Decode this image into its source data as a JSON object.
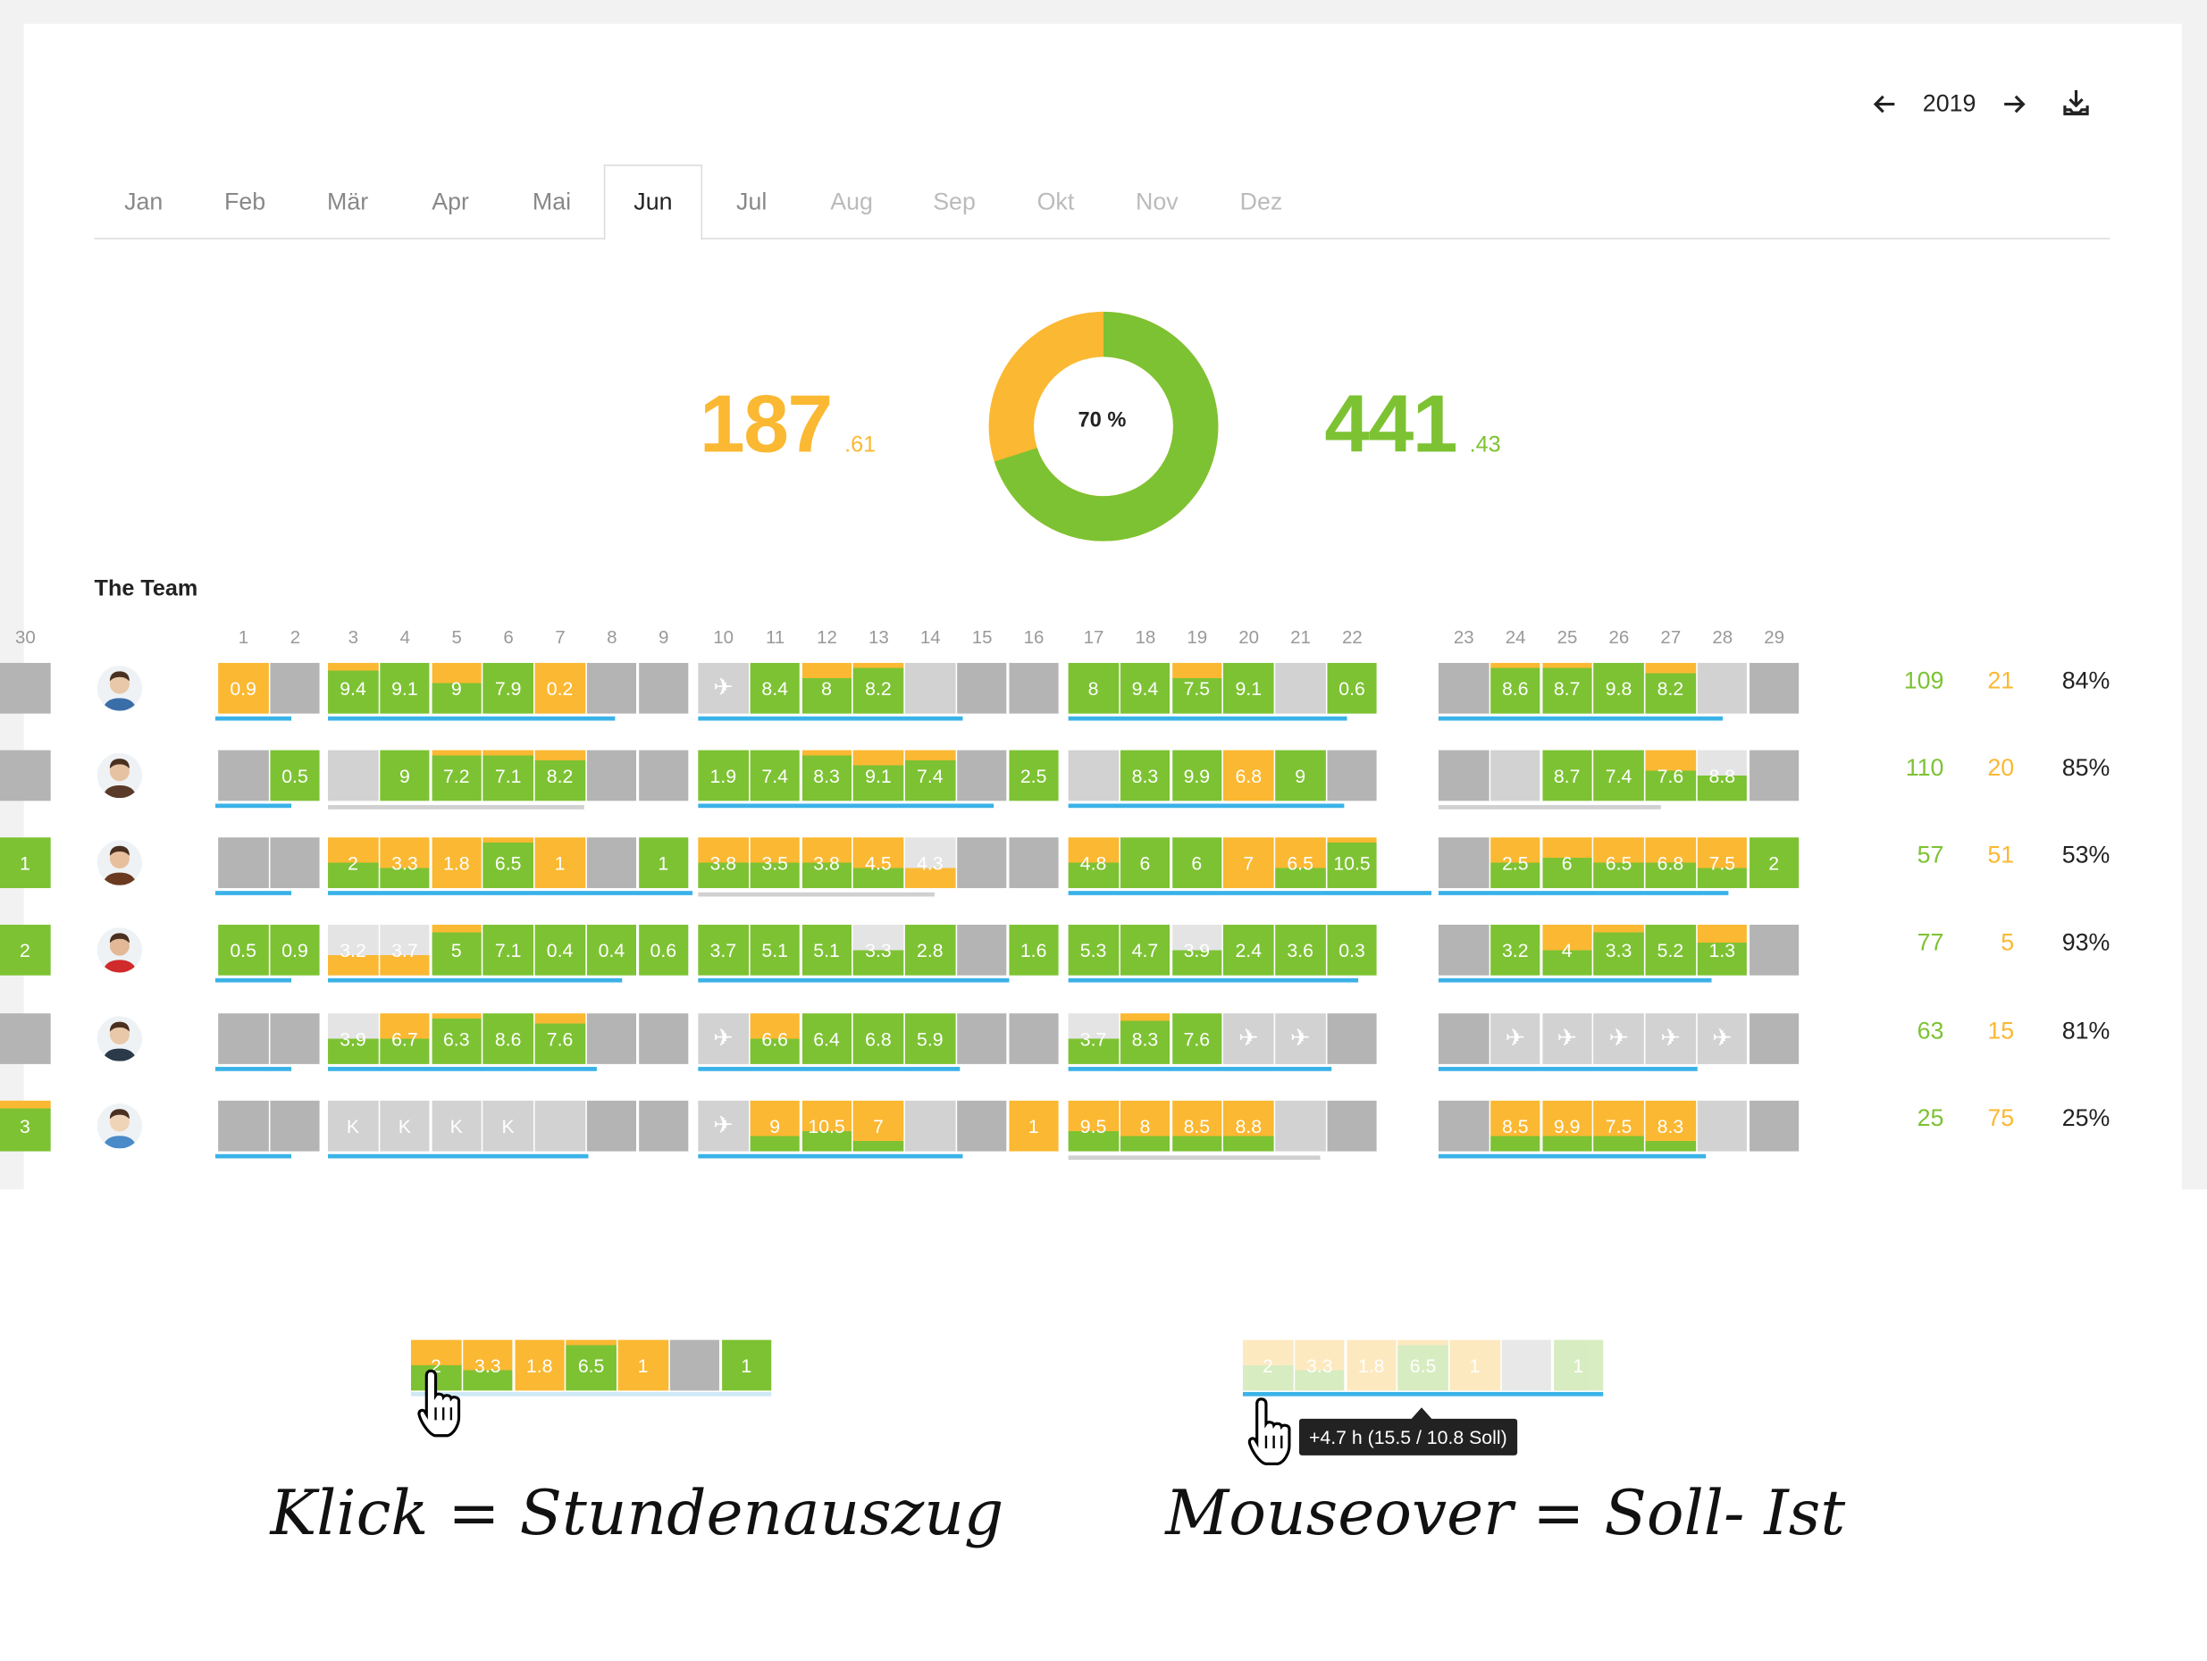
{
  "header": {
    "year": "2019"
  },
  "months": [
    "Jan",
    "Feb",
    "Mär",
    "Apr",
    "Mai",
    "Jun",
    "Jul",
    "Aug",
    "Sep",
    "Okt",
    "Nov",
    "Dez"
  ],
  "active_month": "Jun",
  "summary": {
    "left_int": "187",
    "left_dec": ".61",
    "right_int": "441",
    "right_dec": ".43",
    "donut_label": "70 %",
    "donut_percent": 70
  },
  "colors": {
    "green": "#7dc233",
    "orange": "#fbb832",
    "gray": "#b4b4b4",
    "lightgray": "#d2d2d2",
    "blue": "#3ab2e8"
  },
  "team": {
    "title": "The Team",
    "days": [
      "1",
      "2",
      "3",
      "4",
      "5",
      "6",
      "7",
      "8",
      "9",
      "10",
      "11",
      "12",
      "13",
      "14",
      "15",
      "16",
      "17",
      "18",
      "19",
      "20",
      "21",
      "22",
      "23",
      "24",
      "25",
      "26",
      "27",
      "28",
      "29",
      "30"
    ],
    "members": [
      {
        "hours": "109",
        "overtime": "21",
        "percent": "84%",
        "cells": [
          {
            "label": "0.9",
            "k": "o"
          },
          {
            "label": "",
            "k": "g"
          },
          {
            "label": "9.4",
            "k": "go",
            "f": 0.15
          },
          {
            "label": "9.1",
            "k": "g"
          },
          {
            "label": "9",
            "k": "go",
            "f": 0.4
          },
          {
            "label": "7.9",
            "k": "g"
          },
          {
            "label": "0.2",
            "k": "o"
          },
          {
            "label": "",
            "k": "g"
          },
          {
            "label": "",
            "k": "g"
          },
          {
            "label": "✈",
            "k": "plane"
          },
          {
            "label": "8.4",
            "k": "g"
          },
          {
            "label": "8",
            "k": "go",
            "f": 0.3
          },
          {
            "label": "8.2",
            "k": "go",
            "f": 0.1
          },
          {
            "label": "",
            "k": "l"
          },
          {
            "label": "",
            "k": "g"
          },
          {
            "label": "",
            "k": "g"
          },
          {
            "label": "8",
            "k": "g"
          },
          {
            "label": "9.4",
            "k": "g"
          },
          {
            "label": "7.5",
            "k": "og",
            "f": 0.3
          },
          {
            "label": "9.1",
            "k": "g"
          },
          {
            "label": "",
            "k": "l"
          },
          {
            "label": "0.6",
            "k": "g"
          },
          {
            "label": "",
            "k": "g"
          },
          {
            "label": "8.6",
            "k": "go",
            "f": 0.1
          },
          {
            "label": "8.7",
            "k": "go",
            "f": 0.1
          },
          {
            "label": "9.8",
            "k": "g"
          },
          {
            "label": "8.2",
            "k": "go",
            "f": 0.2
          },
          {
            "label": "",
            "k": "l"
          },
          {
            "label": "",
            "k": "g"
          },
          {
            "label": "",
            "k": "g"
          }
        ]
      },
      {
        "hours": "110",
        "overtime": "20",
        "percent": "85%",
        "cells": [
          {
            "label": "",
            "k": "g"
          },
          {
            "label": "0.5",
            "k": "g"
          },
          {
            "label": "",
            "k": "l"
          },
          {
            "label": "9",
            "k": "g"
          },
          {
            "label": "7.2",
            "k": "go",
            "f": 0.1
          },
          {
            "label": "7.1",
            "k": "go",
            "f": 0.1
          },
          {
            "label": "8.2",
            "k": "go",
            "f": 0.2
          },
          {
            "label": "",
            "k": "g"
          },
          {
            "label": "",
            "k": "g"
          },
          {
            "label": "1.9",
            "k": "g"
          },
          {
            "label": "7.4",
            "k": "g"
          },
          {
            "label": "8.3",
            "k": "go",
            "f": 0.1
          },
          {
            "label": "9.1",
            "k": "go",
            "f": 0.3
          },
          {
            "label": "7.4",
            "k": "go",
            "f": 0.2
          },
          {
            "label": "",
            "k": "g"
          },
          {
            "label": "2.5",
            "k": "g"
          },
          {
            "label": "",
            "k": "l"
          },
          {
            "label": "8.3",
            "k": "g"
          },
          {
            "label": "9.9",
            "k": "g"
          },
          {
            "label": "6.8",
            "k": "o"
          },
          {
            "label": "9",
            "k": "g"
          },
          {
            "label": "",
            "k": "g"
          },
          {
            "label": "",
            "k": "g"
          },
          {
            "label": "",
            "k": "l"
          },
          {
            "label": "8.7",
            "k": "g"
          },
          {
            "label": "7.4",
            "k": "g"
          },
          {
            "label": "7.6",
            "k": "og",
            "f": 0.4
          },
          {
            "label": "8.8",
            "k": "lg",
            "f": 0.5
          },
          {
            "label": "",
            "k": "g"
          },
          {
            "label": "",
            "k": "g"
          }
        ]
      },
      {
        "hours": "57",
        "overtime": "51",
        "percent": "53%",
        "cells": [
          {
            "label": "",
            "k": "g"
          },
          {
            "label": "",
            "k": "g"
          },
          {
            "label": "2",
            "k": "og",
            "f": 0.5
          },
          {
            "label": "3.3",
            "k": "og",
            "f": 0.6
          },
          {
            "label": "1.8",
            "k": "o"
          },
          {
            "label": "6.5",
            "k": "go",
            "f": 0.1
          },
          {
            "label": "1",
            "k": "o"
          },
          {
            "label": "",
            "k": "g"
          },
          {
            "label": "1",
            "k": "g"
          },
          {
            "label": "3.8",
            "k": "og",
            "f": 0.5
          },
          {
            "label": "3.5",
            "k": "og",
            "f": 0.5
          },
          {
            "label": "3.8",
            "k": "og",
            "f": 0.5
          },
          {
            "label": "4.5",
            "k": "og",
            "f": 0.6
          },
          {
            "label": "4.3",
            "k": "lo",
            "f": 0.6
          },
          {
            "label": "",
            "k": "g"
          },
          {
            "label": "",
            "k": "g"
          },
          {
            "label": "4.8",
            "k": "og",
            "f": 0.5
          },
          {
            "label": "6",
            "k": "g"
          },
          {
            "label": "6",
            "k": "g"
          },
          {
            "label": "7",
            "k": "o"
          },
          {
            "label": "6.5",
            "k": "og",
            "f": 0.6
          },
          {
            "label": "10.5",
            "k": "go",
            "f": 0.1
          },
          {
            "label": "",
            "k": "g"
          },
          {
            "label": "2.5",
            "k": "og",
            "f": 0.5
          },
          {
            "label": "6",
            "k": "og",
            "f": 0.4
          },
          {
            "label": "6.5",
            "k": "og",
            "f": 0.5
          },
          {
            "label": "6.8",
            "k": "og",
            "f": 0.5
          },
          {
            "label": "7.5",
            "k": "og",
            "f": 0.6
          },
          {
            "label": "2",
            "k": "g"
          },
          {
            "label": "1",
            "k": "g"
          }
        ]
      },
      {
        "hours": "77",
        "overtime": "5",
        "percent": "93%",
        "cells": [
          {
            "label": "0.5",
            "k": "g"
          },
          {
            "label": "0.9",
            "k": "g"
          },
          {
            "label": "3.2",
            "k": "lo",
            "f": 0.6
          },
          {
            "label": "3.7",
            "k": "lo",
            "f": 0.6
          },
          {
            "label": "5",
            "k": "go",
            "f": 0.15
          },
          {
            "label": "7.1",
            "k": "g"
          },
          {
            "label": "0.4",
            "k": "g"
          },
          {
            "label": "0.4",
            "k": "g"
          },
          {
            "label": "0.6",
            "k": "g"
          },
          {
            "label": "3.7",
            "k": "g"
          },
          {
            "label": "5.1",
            "k": "g"
          },
          {
            "label": "5.1",
            "k": "g"
          },
          {
            "label": "3.3",
            "k": "lg",
            "f": 0.5
          },
          {
            "label": "2.8",
            "k": "g"
          },
          {
            "label": "",
            "k": "g"
          },
          {
            "label": "1.6",
            "k": "g"
          },
          {
            "label": "5.3",
            "k": "g"
          },
          {
            "label": "4.7",
            "k": "g"
          },
          {
            "label": "3.9",
            "k": "lg",
            "f": 0.5
          },
          {
            "label": "2.4",
            "k": "g"
          },
          {
            "label": "3.6",
            "k": "g"
          },
          {
            "label": "0.3",
            "k": "g"
          },
          {
            "label": "",
            "k": "g"
          },
          {
            "label": "3.2",
            "k": "g"
          },
          {
            "label": "4",
            "k": "og",
            "f": 0.5
          },
          {
            "label": "3.3",
            "k": "go",
            "f": 0.15
          },
          {
            "label": "5.2",
            "k": "g"
          },
          {
            "label": "1.3",
            "k": "og",
            "f": 0.35
          },
          {
            "label": "",
            "k": "g"
          },
          {
            "label": "2",
            "k": "g"
          }
        ]
      },
      {
        "hours": "63",
        "overtime": "15",
        "percent": "81%",
        "cells": [
          {
            "label": "",
            "k": "g"
          },
          {
            "label": "",
            "k": "g"
          },
          {
            "label": "3.9",
            "k": "lg",
            "f": 0.5
          },
          {
            "label": "6.7",
            "k": "og",
            "f": 0.5
          },
          {
            "label": "6.3",
            "k": "go",
            "f": 0.1
          },
          {
            "label": "8.6",
            "k": "g"
          },
          {
            "label": "7.6",
            "k": "go",
            "f": 0.2
          },
          {
            "label": "",
            "k": "g"
          },
          {
            "label": "",
            "k": "g"
          },
          {
            "label": "✈",
            "k": "plane"
          },
          {
            "label": "6.6",
            "k": "og",
            "f": 0.5
          },
          {
            "label": "6.4",
            "k": "g"
          },
          {
            "label": "6.8",
            "k": "g"
          },
          {
            "label": "5.9",
            "k": "g"
          },
          {
            "label": "",
            "k": "g"
          },
          {
            "label": "",
            "k": "g"
          },
          {
            "label": "3.7",
            "k": "lg",
            "f": 0.5
          },
          {
            "label": "8.3",
            "k": "go",
            "f": 0.15
          },
          {
            "label": "7.6",
            "k": "g"
          },
          {
            "label": "✈",
            "k": "plane"
          },
          {
            "label": "✈",
            "k": "plane"
          },
          {
            "label": "",
            "k": "g"
          },
          {
            "label": "",
            "k": "g"
          },
          {
            "label": "✈",
            "k": "plane"
          },
          {
            "label": "✈",
            "k": "plane"
          },
          {
            "label": "✈",
            "k": "plane"
          },
          {
            "label": "✈",
            "k": "plane"
          },
          {
            "label": "✈",
            "k": "plane"
          },
          {
            "label": "",
            "k": "g"
          },
          {
            "label": "",
            "k": "g"
          }
        ]
      },
      {
        "hours": "25",
        "overtime": "75",
        "percent": "25%",
        "cells": [
          {
            "label": "",
            "k": "g"
          },
          {
            "label": "",
            "k": "g"
          },
          {
            "label": "K",
            "k": "l"
          },
          {
            "label": "K",
            "k": "l"
          },
          {
            "label": "K",
            "k": "l"
          },
          {
            "label": "K",
            "k": "l"
          },
          {
            "label": "",
            "k": "l"
          },
          {
            "label": "",
            "k": "g"
          },
          {
            "label": "",
            "k": "g"
          },
          {
            "label": "✈",
            "k": "plane"
          },
          {
            "label": "9",
            "k": "og",
            "f": 0.7
          },
          {
            "label": "10.5",
            "k": "og",
            "f": 0.6
          },
          {
            "label": "7",
            "k": "og",
            "f": 0.8
          },
          {
            "label": "",
            "k": "l"
          },
          {
            "label": "",
            "k": "g"
          },
          {
            "label": "1",
            "k": "o"
          },
          {
            "label": "9.5",
            "k": "og",
            "f": 0.6
          },
          {
            "label": "8",
            "k": "og",
            "f": 0.7
          },
          {
            "label": "8.5",
            "k": "og",
            "f": 0.7
          },
          {
            "label": "8.8",
            "k": "og",
            "f": 0.7
          },
          {
            "label": "",
            "k": "l"
          },
          {
            "label": "",
            "k": "g"
          },
          {
            "label": "",
            "k": "g"
          },
          {
            "label": "8.5",
            "k": "og",
            "f": 0.7
          },
          {
            "label": "9.9",
            "k": "og",
            "f": 0.7
          },
          {
            "label": "7.5",
            "k": "og",
            "f": 0.7
          },
          {
            "label": "8.3",
            "k": "og",
            "f": 0.8
          },
          {
            "label": "",
            "k": "l"
          },
          {
            "label": "",
            "k": "g"
          },
          {
            "label": "3",
            "k": "go",
            "f": 0.15
          }
        ]
      }
    ]
  },
  "demo": {
    "click_cells": [
      {
        "label": "2",
        "k": "og",
        "f": 0.5
      },
      {
        "label": "3.3",
        "k": "og",
        "f": 0.6
      },
      {
        "label": "1.8",
        "k": "o"
      },
      {
        "label": "6.5",
        "k": "go",
        "f": 0.1
      },
      {
        "label": "1",
        "k": "o"
      },
      {
        "label": "",
        "k": "g"
      },
      {
        "label": "1",
        "k": "g"
      }
    ],
    "hover_cells": [
      {
        "label": "2",
        "k": "og",
        "f": 0.5
      },
      {
        "label": "3.3",
        "k": "og",
        "f": 0.6
      },
      {
        "label": "1.8",
        "k": "o"
      },
      {
        "label": "6.5",
        "k": "go",
        "f": 0.1
      },
      {
        "label": "1",
        "k": "o"
      },
      {
        "label": "",
        "k": "g"
      },
      {
        "label": "1",
        "k": "g"
      }
    ],
    "tooltip": "+4.7 h (15.5 / 10.8 Soll)",
    "caption_left": "Klick = Stundenauszug",
    "caption_right": "Mouseover = Soll- Ist"
  }
}
